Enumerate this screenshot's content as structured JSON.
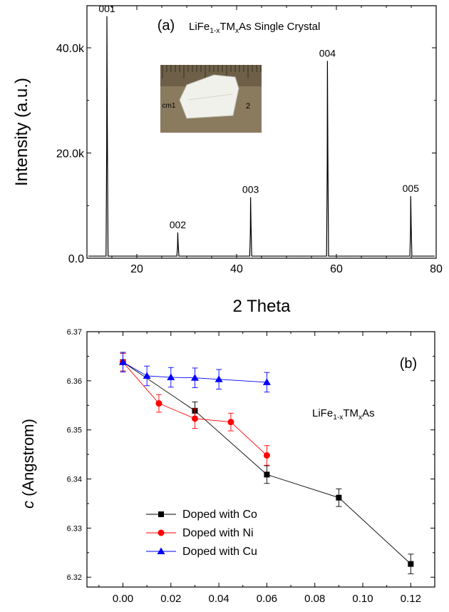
{
  "chart_data": [
    {
      "type": "line",
      "panel_label": "(a)",
      "title_parts": [
        "LiFe",
        "1-x",
        "TM",
        "x",
        "As Single Crystal"
      ],
      "xlabel": "2 Theta",
      "ylabel": "Intensity (a.u.)",
      "xlim": [
        10,
        80
      ],
      "ylim": [
        0,
        48000
      ],
      "xticks": [
        20,
        40,
        60,
        80
      ],
      "yticks": [
        0,
        20000,
        40000
      ],
      "ytick_labels": [
        "0.0",
        "20.0k",
        "40.0k"
      ],
      "baseline": 400,
      "peaks": [
        {
          "label": "001",
          "x": 14.0,
          "y": 46000
        },
        {
          "label": "002",
          "x": 28.2,
          "y": 4900
        },
        {
          "label": "003",
          "x": 42.8,
          "y": 11600
        },
        {
          "label": "004",
          "x": 58.2,
          "y": 37500
        },
        {
          "label": "005",
          "x": 74.9,
          "y": 11800
        }
      ],
      "inset": {
        "description": "photo",
        "labels": [
          "cm1",
          "2"
        ]
      }
    },
    {
      "type": "line",
      "panel_label": "(b)",
      "annotation_parts": [
        "LiFe",
        "1-x",
        "TM",
        "x",
        "As"
      ],
      "xlabel": "",
      "ylabel_italic": "c",
      "ylabel": " (Angstrom)",
      "xlim": [
        -0.015,
        0.13
      ],
      "ylim": [
        6.318,
        6.37
      ],
      "xticks": [
        0.0,
        0.02,
        0.04,
        0.06,
        0.08,
        0.1,
        0.12
      ],
      "xtick_labels": [
        "0.00",
        "0.02",
        "0.04",
        "0.06",
        "0.08",
        "0.10",
        "0.12"
      ],
      "yticks": [
        6.32,
        6.33,
        6.34,
        6.35,
        6.36,
        6.37
      ],
      "ytick_labels": [
        "6.32",
        "6.33",
        "6.34",
        "6.35",
        "6.36",
        "6.37"
      ],
      "legend_position": "bottom-left",
      "series": [
        {
          "name": "Doped with Co",
          "color": "#000000",
          "marker": "square",
          "x": [
            0.0,
            0.03,
            0.06,
            0.09,
            0.12
          ],
          "y": [
            6.3638,
            6.3539,
            6.3409,
            6.3362,
            6.3227
          ],
          "err": [
            0.0018,
            0.0018,
            0.0018,
            0.0018,
            0.002
          ]
        },
        {
          "name": "Doped with Ni",
          "color": "#ff0000",
          "marker": "circle",
          "x": [
            0.0,
            0.015,
            0.03,
            0.045,
            0.06
          ],
          "y": [
            6.3638,
            6.3554,
            6.3523,
            6.3516,
            6.3448
          ],
          "err": [
            0.0018,
            0.0018,
            0.002,
            0.0018,
            0.002
          ]
        },
        {
          "name": "Doped with Cu",
          "color": "#0000ff",
          "marker": "triangle",
          "x": [
            0.0,
            0.01,
            0.02,
            0.03,
            0.04,
            0.06
          ],
          "y": [
            6.3638,
            6.361,
            6.3607,
            6.3606,
            6.3603,
            6.3597
          ],
          "err": [
            0.002,
            0.002,
            0.002,
            0.002,
            0.002,
            0.002
          ]
        }
      ]
    }
  ]
}
